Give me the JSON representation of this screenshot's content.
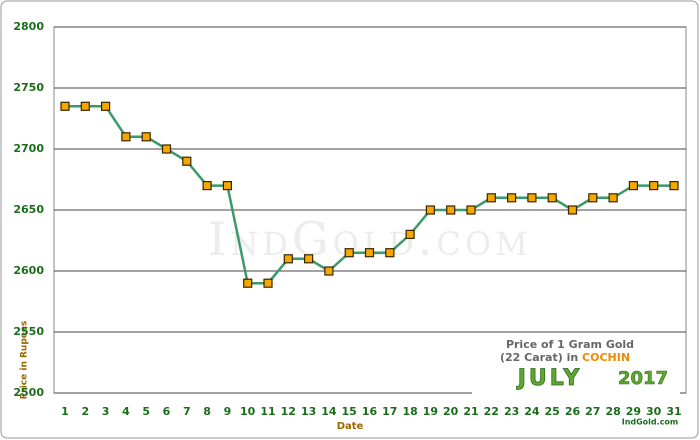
{
  "chart_data": {
    "type": "line",
    "x_label": "Date",
    "y_label": "Price in Rupees",
    "watermark": "IndGold.com",
    "legend_box": {
      "line1": "Price of 1 Gram Gold",
      "line2": "(22 Carat) in",
      "city": "COCHIN",
      "month": "JULY",
      "year": "2017",
      "credit": "IndGold.com"
    },
    "categories": [
      "1",
      "2",
      "3",
      "4",
      "5",
      "6",
      "7",
      "8",
      "9",
      "10",
      "11",
      "12",
      "13",
      "14",
      "15",
      "16",
      "17",
      "18",
      "19",
      "20",
      "21",
      "22",
      "23",
      "24",
      "25",
      "26",
      "27",
      "28",
      "29",
      "30",
      "31"
    ],
    "series": [
      {
        "color": "#3a9a6a",
        "marker_color": "#f5a800",
        "values": [
          2735,
          2735,
          2735,
          2710,
          2710,
          2700,
          2690,
          2670,
          2670,
          2590,
          2590,
          2610,
          2610,
          2600,
          2615,
          2615,
          2615,
          2630,
          2650,
          2650,
          2650,
          2660,
          2660,
          2660,
          2660,
          2650,
          2660,
          2660,
          2670,
          2670,
          2670
        ]
      }
    ],
    "ylim": [
      2500,
      2800
    ],
    "yticks": [
      2500,
      2550,
      2600,
      2650,
      2700,
      2750,
      2800
    ],
    "grid": true
  }
}
